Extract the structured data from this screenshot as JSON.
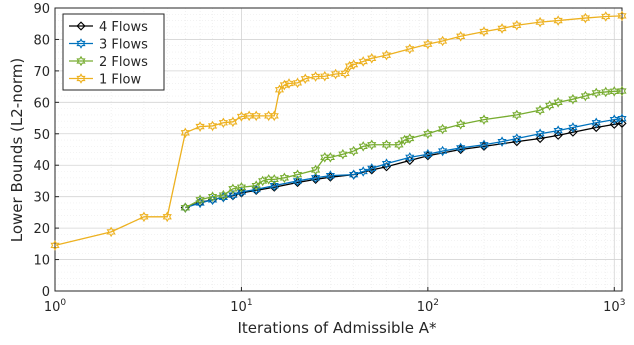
{
  "chart_data": {
    "type": "line",
    "title": "",
    "xlabel": "Iterations of Admissible A*",
    "ylabel": "Lower Bounds (L2-norm)",
    "xscale": "log",
    "xlim": [
      1,
      1100
    ],
    "ylim": [
      0,
      90
    ],
    "grid": true,
    "legend_position": "top-left",
    "x_ticks": [
      {
        "value": 1,
        "base": "10",
        "exp": "0"
      },
      {
        "value": 10,
        "base": "10",
        "exp": "1"
      },
      {
        "value": 100,
        "base": "10",
        "exp": "2"
      },
      {
        "value": 1000,
        "base": "10",
        "exp": "3"
      }
    ],
    "y_ticks": [
      "0",
      "10",
      "20",
      "30",
      "40",
      "50",
      "60",
      "70",
      "80",
      "90"
    ],
    "series": [
      {
        "name": "4 Flows",
        "color": "#000000",
        "marker": "diamond",
        "points": [
          [
            5,
            26.5
          ],
          [
            6,
            28.2
          ],
          [
            7,
            29.0
          ],
          [
            8,
            29.8
          ],
          [
            9,
            30.3
          ],
          [
            10,
            31.2
          ],
          [
            12,
            32.0
          ],
          [
            15,
            33.0
          ],
          [
            20,
            34.5
          ],
          [
            25,
            35.5
          ],
          [
            30,
            36.2
          ],
          [
            40,
            37.0
          ],
          [
            50,
            38.5
          ],
          [
            60,
            39.5
          ],
          [
            80,
            41.5
          ],
          [
            100,
            43.0
          ],
          [
            150,
            45.0
          ],
          [
            200,
            46.0
          ],
          [
            300,
            47.5
          ],
          [
            400,
            48.5
          ],
          [
            500,
            49.5
          ],
          [
            600,
            50.5
          ],
          [
            800,
            52.0
          ],
          [
            1000,
            53.0
          ],
          [
            1100,
            53.3
          ]
        ]
      },
      {
        "name": "3 Flows",
        "color": "#0072BD",
        "marker": "hexagram",
        "points": [
          [
            5,
            26.5
          ],
          [
            6,
            28.0
          ],
          [
            7,
            29.0
          ],
          [
            8,
            29.8
          ],
          [
            9,
            30.5
          ],
          [
            10,
            31.5
          ],
          [
            12,
            32.3
          ],
          [
            15,
            33.5
          ],
          [
            20,
            35.0
          ],
          [
            25,
            36.0
          ],
          [
            30,
            36.7
          ],
          [
            40,
            37.0
          ],
          [
            45,
            38.0
          ],
          [
            50,
            39.0
          ],
          [
            60,
            40.5
          ],
          [
            80,
            42.5
          ],
          [
            100,
            43.5
          ],
          [
            120,
            44.5
          ],
          [
            150,
            45.5
          ],
          [
            200,
            46.5
          ],
          [
            250,
            47.5
          ],
          [
            300,
            48.5
          ],
          [
            400,
            50.0
          ],
          [
            500,
            51.0
          ],
          [
            600,
            52.0
          ],
          [
            800,
            53.5
          ],
          [
            1000,
            54.5
          ],
          [
            1100,
            54.8
          ]
        ]
      },
      {
        "name": "2 Flows",
        "color": "#77AC30",
        "marker": "hexagram",
        "points": [
          [
            5,
            26.5
          ],
          [
            6,
            29.0
          ],
          [
            7,
            30.0
          ],
          [
            8,
            30.5
          ],
          [
            9,
            32.5
          ],
          [
            10,
            33.0
          ],
          [
            12,
            33.5
          ],
          [
            13,
            35.0
          ],
          [
            14,
            35.5
          ],
          [
            15,
            35.5
          ],
          [
            17,
            36.0
          ],
          [
            20,
            37.0
          ],
          [
            25,
            38.5
          ],
          [
            28,
            42.5
          ],
          [
            30,
            42.5
          ],
          [
            35,
            43.5
          ],
          [
            40,
            44.5
          ],
          [
            45,
            46.0
          ],
          [
            50,
            46.5
          ],
          [
            60,
            46.5
          ],
          [
            70,
            46.5
          ],
          [
            75,
            48.0
          ],
          [
            80,
            48.5
          ],
          [
            100,
            50.0
          ],
          [
            120,
            51.5
          ],
          [
            150,
            53.0
          ],
          [
            200,
            54.5
          ],
          [
            300,
            56.0
          ],
          [
            400,
            57.5
          ],
          [
            450,
            59.0
          ],
          [
            500,
            60.0
          ],
          [
            600,
            61.0
          ],
          [
            700,
            62.0
          ],
          [
            800,
            63.0
          ],
          [
            900,
            63.3
          ],
          [
            1000,
            63.5
          ],
          [
            1100,
            63.6
          ]
        ]
      },
      {
        "name": "1 Flow",
        "color": "#EDB120",
        "marker": "hexagram",
        "points": [
          [
            1,
            14.5
          ],
          [
            2,
            18.8
          ],
          [
            3,
            23.6
          ],
          [
            4,
            23.6
          ],
          [
            5,
            50.3
          ],
          [
            6,
            52.3
          ],
          [
            7,
            52.5
          ],
          [
            8,
            53.5
          ],
          [
            9,
            53.8
          ],
          [
            10,
            55.5
          ],
          [
            11,
            55.7
          ],
          [
            12,
            55.7
          ],
          [
            14,
            55.7
          ],
          [
            15,
            55.7
          ],
          [
            16,
            64.0
          ],
          [
            17,
            65.5
          ],
          [
            18,
            66.0
          ],
          [
            20,
            66.2
          ],
          [
            22,
            67.5
          ],
          [
            25,
            68.2
          ],
          [
            28,
            68.3
          ],
          [
            32,
            69.0
          ],
          [
            36,
            69.2
          ],
          [
            38,
            71.5
          ],
          [
            40,
            72.0
          ],
          [
            45,
            73.0
          ],
          [
            50,
            74.0
          ],
          [
            60,
            75.0
          ],
          [
            80,
            77.0
          ],
          [
            100,
            78.5
          ],
          [
            120,
            79.5
          ],
          [
            150,
            81.0
          ],
          [
            200,
            82.5
          ],
          [
            250,
            83.5
          ],
          [
            300,
            84.5
          ],
          [
            400,
            85.5
          ],
          [
            500,
            86.0
          ],
          [
            700,
            86.8
          ],
          [
            900,
            87.3
          ],
          [
            1100,
            87.5
          ]
        ]
      }
    ]
  }
}
